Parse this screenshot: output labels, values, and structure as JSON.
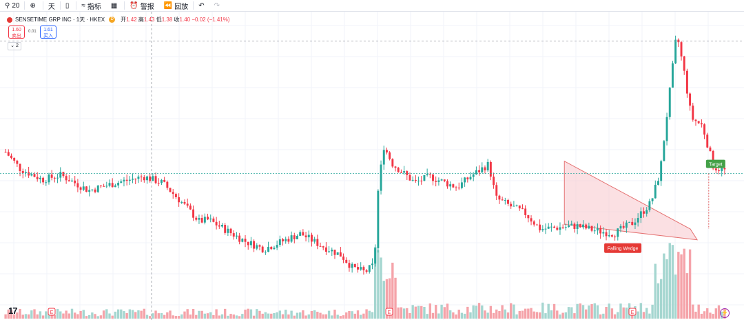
{
  "toolbar": {
    "symbol_search": "20",
    "interval": "天",
    "indicators_label": "指标",
    "alert_label": "警报",
    "replay_label": "回放",
    "icons": [
      "search-icon",
      "plus-circle-icon",
      "candles-icon",
      "indicators-icon",
      "layout-icon",
      "alert-clock-icon",
      "replay-icon",
      "undo-icon",
      "redo-icon"
    ]
  },
  "legend": {
    "symbol": "SENSETIME GRP INC · 1天 · HKEX",
    "delay_badge": "D",
    "open_label": "开",
    "open": "1.42",
    "high_label": "高",
    "high": "1.43",
    "low_label": "低",
    "low": "1.38",
    "close_label": "收",
    "close": "1.40",
    "change": "−0.02 (−1.41%)"
  },
  "quote": {
    "sell_price": "1.60",
    "sell_label": "卖出",
    "spread": "0.01",
    "buy_price": "1.61",
    "buy_label": "买入"
  },
  "collapse_label": "2",
  "annotations": {
    "pattern_label": "Falling Wedge",
    "target_label": "Target"
  },
  "earnings_marker": "E",
  "colors": {
    "up": "#26a69a",
    "down": "#f23645",
    "up_volume": "#a5d6d0",
    "down_volume": "#f5a3a9",
    "wedge_fill": "#f8c6cc",
    "target": "#43a047"
  },
  "chart_data": {
    "type": "candlestick",
    "series": [
      {
        "name": "SENSETIME GRP INC",
        "x": [],
        "open": [],
        "high": [],
        "low": [],
        "close": [],
        "volume": []
      }
    ],
    "candle_count": 250,
    "ylim": [
      0.9,
      2.6
    ]
  }
}
